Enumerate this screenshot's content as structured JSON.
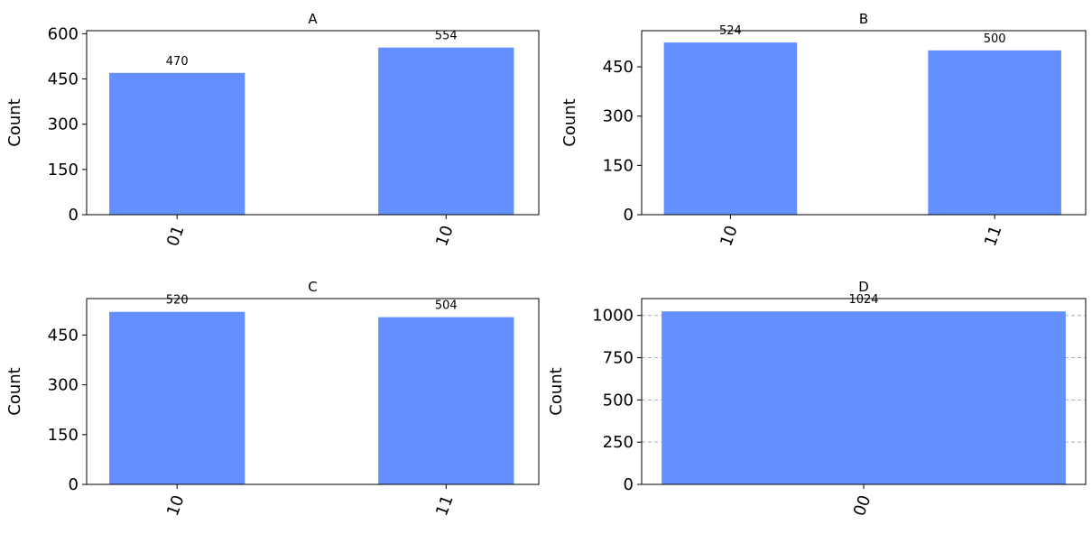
{
  "chart_data": [
    {
      "type": "bar",
      "title": "A",
      "xlabel": "",
      "ylabel": "Count",
      "categories": [
        "01",
        "10"
      ],
      "values": [
        470,
        554
      ],
      "data_labels": [
        "470",
        "554"
      ],
      "ylim": [
        0,
        610
      ],
      "yticks": [
        0,
        150,
        300,
        450,
        600
      ],
      "ytick_labels": [
        "0",
        "150",
        "300",
        "450",
        "600"
      ],
      "grid": false,
      "color": "#648fff"
    },
    {
      "type": "bar",
      "title": "B",
      "xlabel": "",
      "ylabel": "Count",
      "categories": [
        "10",
        "11"
      ],
      "values": [
        524,
        500
      ],
      "data_labels": [
        "524",
        "500"
      ],
      "ylim": [
        0,
        560
      ],
      "yticks": [
        0,
        150,
        300,
        450
      ],
      "ytick_labels": [
        "0",
        "150",
        "300",
        "450"
      ],
      "grid": false,
      "color": "#648fff"
    },
    {
      "type": "bar",
      "title": "C",
      "xlabel": "",
      "ylabel": "Count",
      "categories": [
        "10",
        "11"
      ],
      "values": [
        520,
        504
      ],
      "data_labels": [
        "520",
        "504"
      ],
      "ylim": [
        0,
        560
      ],
      "yticks": [
        0,
        150,
        300,
        450
      ],
      "ytick_labels": [
        "0",
        "150",
        "300",
        "450"
      ],
      "grid": false,
      "color": "#648fff"
    },
    {
      "type": "bar",
      "title": "D",
      "xlabel": "",
      "ylabel": "Count",
      "categories": [
        "00"
      ],
      "values": [
        1024
      ],
      "data_labels": [
        "1024"
      ],
      "ylim": [
        0,
        1100
      ],
      "yticks": [
        0,
        250,
        500,
        750,
        1000
      ],
      "ytick_labels": [
        "0",
        "250",
        "500",
        "750",
        "1000"
      ],
      "grid": true,
      "color": "#648fff"
    }
  ]
}
